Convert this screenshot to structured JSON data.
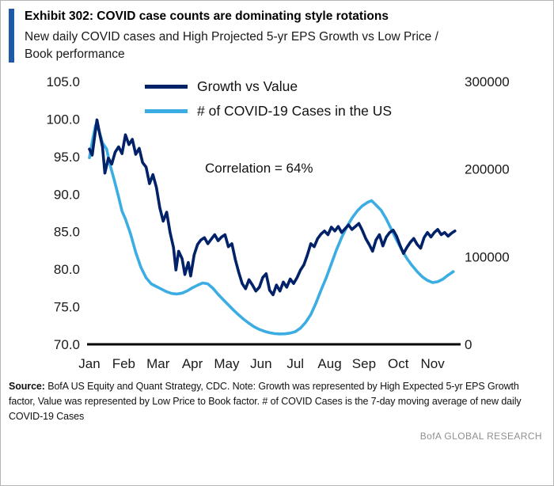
{
  "header": {
    "title": "Exhibit 302: COVID case counts are dominating style rotations",
    "subtitle": "New daily COVID cases and High Projected 5-yr EPS Growth vs Low Price / Book performance"
  },
  "colors": {
    "accent": "#1e5aa8",
    "navy": "#012169",
    "light_blue": "#3bade3",
    "axis": "#000000"
  },
  "chart_data": {
    "type": "line",
    "title": "Exhibit 302: COVID case counts are dominating style rotations",
    "annotation": "Correlation  = 64%",
    "grid": false,
    "legend_position": "top-inside",
    "x_axis": {
      "ticks": [
        "Jan",
        "Feb",
        "Mar",
        "Apr",
        "May",
        "Jun",
        "Jul",
        "Aug",
        "Sep",
        "Oct",
        "Nov"
      ],
      "domain_months": [
        0,
        10.7
      ]
    },
    "y_axis_left": {
      "ticks": [
        "105.0",
        "100.0",
        "95.0",
        "90.0",
        "85.0",
        "80.0",
        "75.0",
        "70.0"
      ],
      "range": [
        70,
        105
      ]
    },
    "y_axis_right": {
      "ticks": [
        "300000",
        "200000",
        "100000",
        "0"
      ],
      "range": [
        0,
        300000
      ]
    },
    "series": [
      {
        "name": "Growth vs Value",
        "axis": "left",
        "color": "#012169",
        "points": [
          [
            0.0,
            96.0
          ],
          [
            0.08,
            95.2
          ],
          [
            0.15,
            97.6
          ],
          [
            0.22,
            99.9
          ],
          [
            0.3,
            98.0
          ],
          [
            0.38,
            96.3
          ],
          [
            0.45,
            92.8
          ],
          [
            0.55,
            94.8
          ],
          [
            0.65,
            94.0
          ],
          [
            0.75,
            95.6
          ],
          [
            0.85,
            96.3
          ],
          [
            0.95,
            95.4
          ],
          [
            1.05,
            97.9
          ],
          [
            1.15,
            96.6
          ],
          [
            1.25,
            97.3
          ],
          [
            1.35,
            95.3
          ],
          [
            1.45,
            96.1
          ],
          [
            1.55,
            94.2
          ],
          [
            1.65,
            93.6
          ],
          [
            1.75,
            91.4
          ],
          [
            1.85,
            92.6
          ],
          [
            1.95,
            90.9
          ],
          [
            2.05,
            88.2
          ],
          [
            2.15,
            86.4
          ],
          [
            2.25,
            87.6
          ],
          [
            2.35,
            84.9
          ],
          [
            2.45,
            82.9
          ],
          [
            2.52,
            79.9
          ],
          [
            2.6,
            82.4
          ],
          [
            2.7,
            81.4
          ],
          [
            2.78,
            79.3
          ],
          [
            2.88,
            80.9
          ],
          [
            2.95,
            79.1
          ],
          [
            3.05,
            81.9
          ],
          [
            3.15,
            83.3
          ],
          [
            3.25,
            83.9
          ],
          [
            3.35,
            84.2
          ],
          [
            3.45,
            83.4
          ],
          [
            3.55,
            84.0
          ],
          [
            3.65,
            84.6
          ],
          [
            3.75,
            83.8
          ],
          [
            3.85,
            84.3
          ],
          [
            3.95,
            84.6
          ],
          [
            4.05,
            83.0
          ],
          [
            4.15,
            83.4
          ],
          [
            4.25,
            81.3
          ],
          [
            4.35,
            79.6
          ],
          [
            4.45,
            78.1
          ],
          [
            4.55,
            77.4
          ],
          [
            4.65,
            78.6
          ],
          [
            4.75,
            77.9
          ],
          [
            4.85,
            77.1
          ],
          [
            4.95,
            77.6
          ],
          [
            5.05,
            78.9
          ],
          [
            5.15,
            79.4
          ],
          [
            5.25,
            77.2
          ],
          [
            5.35,
            76.6
          ],
          [
            5.45,
            77.9
          ],
          [
            5.55,
            77.1
          ],
          [
            5.65,
            78.3
          ],
          [
            5.75,
            77.6
          ],
          [
            5.85,
            78.7
          ],
          [
            5.95,
            78.1
          ],
          [
            6.05,
            78.9
          ],
          [
            6.15,
            79.9
          ],
          [
            6.25,
            80.6
          ],
          [
            6.35,
            81.9
          ],
          [
            6.45,
            83.4
          ],
          [
            6.55,
            83.0
          ],
          [
            6.65,
            84.1
          ],
          [
            6.75,
            84.7
          ],
          [
            6.85,
            85.1
          ],
          [
            6.95,
            84.6
          ],
          [
            7.05,
            85.6
          ],
          [
            7.15,
            85.1
          ],
          [
            7.25,
            85.7
          ],
          [
            7.35,
            84.9
          ],
          [
            7.45,
            85.4
          ],
          [
            7.55,
            85.9
          ],
          [
            7.65,
            85.3
          ],
          [
            7.75,
            85.7
          ],
          [
            7.85,
            86.1
          ],
          [
            7.95,
            85.2
          ],
          [
            8.05,
            84.1
          ],
          [
            8.15,
            83.3
          ],
          [
            8.25,
            82.4
          ],
          [
            8.35,
            83.9
          ],
          [
            8.45,
            84.6
          ],
          [
            8.55,
            83.1
          ],
          [
            8.65,
            84.3
          ],
          [
            8.75,
            84.9
          ],
          [
            8.85,
            85.2
          ],
          [
            8.95,
            84.4
          ],
          [
            9.05,
            83.2
          ],
          [
            9.15,
            82.1
          ],
          [
            9.25,
            82.9
          ],
          [
            9.35,
            83.6
          ],
          [
            9.45,
            84.1
          ],
          [
            9.55,
            83.3
          ],
          [
            9.65,
            82.8
          ],
          [
            9.75,
            84.2
          ],
          [
            9.85,
            84.9
          ],
          [
            9.95,
            84.3
          ],
          [
            10.05,
            84.9
          ],
          [
            10.15,
            85.3
          ],
          [
            10.25,
            84.6
          ],
          [
            10.35,
            84.9
          ],
          [
            10.45,
            84.4
          ],
          [
            10.55,
            84.8
          ],
          [
            10.65,
            85.1
          ]
        ]
      },
      {
        "name": "# of COVID-19 Cases in the US",
        "axis": "right",
        "color": "#3bade3",
        "points": [
          [
            0.0,
            213000
          ],
          [
            0.1,
            235000
          ],
          [
            0.18,
            250000
          ],
          [
            0.28,
            244000
          ],
          [
            0.38,
            230000
          ],
          [
            0.5,
            223000
          ],
          [
            0.6,
            205000
          ],
          [
            0.72,
            188000
          ],
          [
            0.85,
            168000
          ],
          [
            0.95,
            152000
          ],
          [
            1.05,
            143000
          ],
          [
            1.2,
            126000
          ],
          [
            1.35,
            105000
          ],
          [
            1.5,
            88000
          ],
          [
            1.65,
            76000
          ],
          [
            1.8,
            69000
          ],
          [
            1.95,
            66000
          ],
          [
            2.1,
            63000
          ],
          [
            2.25,
            60000
          ],
          [
            2.4,
            58000
          ],
          [
            2.55,
            57500
          ],
          [
            2.7,
            58500
          ],
          [
            2.85,
            61000
          ],
          [
            3.0,
            64500
          ],
          [
            3.15,
            67500
          ],
          [
            3.3,
            70000
          ],
          [
            3.45,
            69000
          ],
          [
            3.6,
            64000
          ],
          [
            3.75,
            57000
          ],
          [
            3.9,
            51000
          ],
          [
            4.05,
            45000
          ],
          [
            4.2,
            39000
          ],
          [
            4.35,
            33500
          ],
          [
            4.5,
            28500
          ],
          [
            4.65,
            24000
          ],
          [
            4.8,
            20000
          ],
          [
            4.95,
            17000
          ],
          [
            5.1,
            14800
          ],
          [
            5.25,
            13200
          ],
          [
            5.4,
            12200
          ],
          [
            5.55,
            11800
          ],
          [
            5.7,
            12000
          ],
          [
            5.85,
            12800
          ],
          [
            6.0,
            14500
          ],
          [
            6.15,
            18500
          ],
          [
            6.3,
            25000
          ],
          [
            6.45,
            34000
          ],
          [
            6.6,
            47000
          ],
          [
            6.75,
            62000
          ],
          [
            6.9,
            76000
          ],
          [
            7.05,
            92000
          ],
          [
            7.2,
            108000
          ],
          [
            7.35,
            122000
          ],
          [
            7.5,
            134000
          ],
          [
            7.65,
            144000
          ],
          [
            7.8,
            152000
          ],
          [
            7.95,
            158000
          ],
          [
            8.1,
            162000
          ],
          [
            8.22,
            164000
          ],
          [
            8.35,
            159000
          ],
          [
            8.5,
            153000
          ],
          [
            8.65,
            143000
          ],
          [
            8.8,
            131000
          ],
          [
            8.95,
            119000
          ],
          [
            9.1,
            108000
          ],
          [
            9.25,
            98000
          ],
          [
            9.4,
            90000
          ],
          [
            9.55,
            83000
          ],
          [
            9.7,
            77000
          ],
          [
            9.85,
            73000
          ],
          [
            10.0,
            70500
          ],
          [
            10.15,
            71500
          ],
          [
            10.3,
            74500
          ],
          [
            10.45,
            79000
          ],
          [
            10.6,
            83000
          ]
        ]
      }
    ]
  },
  "footer": {
    "source_label": "Source:",
    "source_text": " BofA US Equity and Quant Strategy, CDC. Note: Growth was represented by High Expected 5-yr EPS Growth factor, Value was represented by Low Price to Book factor. # of COVID Cases is the 7-day moving average of new daily COVID-19 Cases",
    "brand": "BofA GLOBAL RESEARCH"
  }
}
